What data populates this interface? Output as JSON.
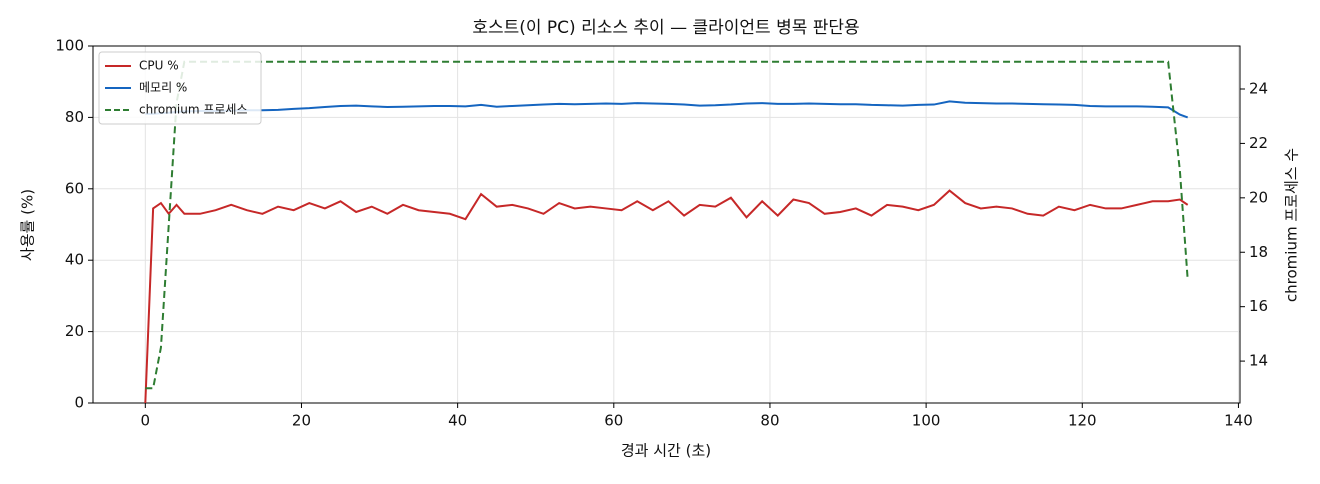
{
  "chart_data": {
    "type": "line",
    "title": "호스트(이 PC) 리소스 추이 — 클라이언트 병목 판단용",
    "xlabel": "경과 시간 (초)",
    "ylabel": "사용률 (%)",
    "y2label": "chromium 프로세스 수",
    "x": [
      0,
      1,
      2,
      3,
      4,
      5,
      7,
      9,
      11,
      13,
      15,
      17,
      19,
      21,
      23,
      25,
      27,
      29,
      31,
      33,
      35,
      37,
      39,
      41,
      43,
      45,
      47,
      49,
      51,
      53,
      55,
      57,
      59,
      61,
      63,
      65,
      67,
      69,
      71,
      73,
      75,
      77,
      79,
      81,
      83,
      85,
      87,
      89,
      91,
      93,
      95,
      97,
      99,
      101,
      103,
      105,
      107,
      109,
      111,
      113,
      115,
      117,
      119,
      121,
      123,
      125,
      127,
      129,
      131,
      132.5,
      133.5
    ],
    "series": [
      {
        "name": "CPU %",
        "color": "#c62828",
        "linestyle": "solid",
        "values": [
          0,
          54.5,
          56,
          53,
          55.5,
          53,
          53,
          54,
          55.5,
          54,
          53,
          55,
          54,
          56,
          54.5,
          56.5,
          53.5,
          55,
          53,
          55.5,
          54,
          53.5,
          53,
          51.5,
          58.5,
          55,
          55.5,
          54.5,
          53,
          56,
          54.5,
          55,
          54.5,
          54,
          56.5,
          54,
          56.5,
          52.5,
          55.5,
          55,
          57.5,
          52,
          56.5,
          52.5,
          57,
          56,
          53,
          53.5,
          54.5,
          52.5,
          55.5,
          55,
          54,
          55.5,
          59.5,
          56,
          54.5,
          55,
          54.5,
          53,
          52.5,
          55,
          54,
          55.5,
          54.5,
          54.5,
          55.5,
          56.5,
          56.5,
          57,
          55.5
        ]
      },
      {
        "name": "메모리 %",
        "color": "#1565c0",
        "linestyle": "solid",
        "values": [
          81,
          81,
          81.2,
          81.3,
          81.5,
          81.7,
          81.8,
          81.8,
          81.9,
          82,
          82,
          82.1,
          82.4,
          82.6,
          82.9,
          83.2,
          83.3,
          83.1,
          82.9,
          83,
          83.1,
          83.2,
          83.2,
          83.1,
          83.5,
          83,
          83.2,
          83.4,
          83.6,
          83.8,
          83.7,
          83.8,
          83.9,
          83.8,
          84,
          83.9,
          83.8,
          83.6,
          83.3,
          83.4,
          83.6,
          83.9,
          84,
          83.8,
          83.8,
          83.9,
          83.8,
          83.7,
          83.7,
          83.5,
          83.4,
          83.3,
          83.5,
          83.6,
          84.5,
          84.1,
          84,
          83.9,
          83.9,
          83.8,
          83.7,
          83.6,
          83.5,
          83.2,
          83.1,
          83.1,
          83.1,
          83,
          82.8,
          80.8,
          80
        ]
      },
      {
        "name": "chromium 프로세스",
        "color": "#2e7d32",
        "linestyle": "dashed",
        "axis": "y2",
        "values": [
          13,
          13,
          14.5,
          19,
          23.5,
          25,
          25,
          25,
          25,
          25,
          25,
          25,
          25,
          25,
          25,
          25,
          25,
          25,
          25,
          25,
          25,
          25,
          25,
          25,
          25,
          25,
          25,
          25,
          25,
          25,
          25,
          25,
          25,
          25,
          25,
          25,
          25,
          25,
          25,
          25,
          25,
          25,
          25,
          25,
          25,
          25,
          25,
          25,
          25,
          25,
          25,
          25,
          25,
          25,
          25,
          25,
          25,
          25,
          25,
          25,
          25,
          25,
          25,
          25,
          25,
          25,
          25,
          25,
          25,
          21,
          17
        ]
      }
    ],
    "xlim": [
      -6.7,
      140.2
    ],
    "xticks": [
      0,
      20,
      40,
      60,
      80,
      100,
      120,
      140
    ],
    "ylim": [
      0,
      100
    ],
    "yticks": [
      0,
      20,
      40,
      60,
      80,
      100
    ],
    "y2lim": [
      12.46,
      25.58
    ],
    "y2ticks": [
      14,
      16,
      18,
      20,
      22,
      24
    ],
    "grid": true,
    "legend": "upper left"
  }
}
